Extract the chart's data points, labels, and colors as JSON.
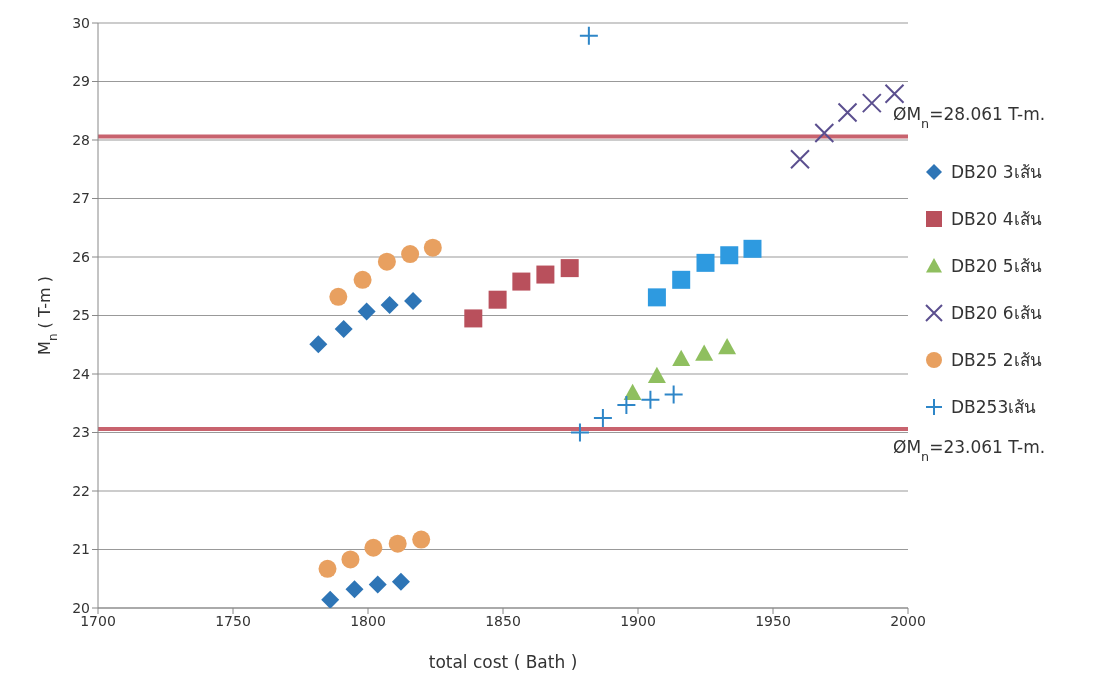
{
  "chart_data": {
    "type": "scatter",
    "xlabel": "total cost ( Bath )",
    "ylabel": "M$_{n}$ ( T-m )",
    "xlim": [
      1700,
      2000
    ],
    "xticks": [
      1700,
      1750,
      1800,
      1850,
      1900,
      1950,
      2000
    ],
    "ylim": [
      20,
      30
    ],
    "yticks": [
      20,
      21,
      22,
      23,
      24,
      25,
      26,
      27,
      28,
      29,
      30
    ],
    "grid": "y",
    "legend": "right",
    "series": [
      {
        "name": "DB20 3เส้น",
        "color": "#2e75b6",
        "marker": "diamond",
        "x": [
          1781.6,
          1791,
          1799.5,
          1808,
          1816.7,
          1786,
          1795,
          1803.6,
          1812.2
        ],
        "values": [
          24.51,
          24.77,
          25.07,
          25.18,
          25.25,
          20.14,
          20.32,
          20.4,
          20.45
        ]
      },
      {
        "name": "DB20 4เส้น",
        "color": "#b9505c",
        "marker": "square",
        "x": [
          1839,
          1848,
          1856.8,
          1865.7,
          1874.7
        ],
        "values": [
          24.95,
          25.27,
          25.58,
          25.7,
          25.81
        ]
      },
      {
        "name": "DB20 5เส้น",
        "color": "#8fbf5f",
        "marker": "triangle",
        "x": [
          1898,
          1907,
          1916,
          1924.5,
          1933
        ],
        "values": [
          23.68,
          23.97,
          24.26,
          24.35,
          24.46
        ]
      },
      {
        "name": "DB20 6เส้น",
        "color": "#5b4f8f",
        "marker": "cross",
        "x": [
          1960,
          1969,
          1977.6,
          1986.6,
          1995
        ],
        "values": [
          27.67,
          28.12,
          28.47,
          28.63,
          28.79
        ]
      },
      {
        "name": "DB25 2เส้น",
        "color": "#e8a060",
        "marker": "circle",
        "x": [
          1789,
          1798,
          1807,
          1815.6,
          1824,
          1785,
          1793.5,
          1802,
          1811,
          1819.7
        ],
        "values": [
          25.32,
          25.61,
          25.92,
          26.05,
          26.16,
          20.67,
          20.83,
          21.03,
          21.1,
          21.17
        ]
      },
      {
        "name": "DB253เส้น",
        "color": "#2e86c8",
        "marker": "plus",
        "x": [
          1878.5,
          1887,
          1895.7,
          1904.6,
          1913.2,
          1881.8
        ],
        "values": [
          23.0,
          23.25,
          23.47,
          23.56,
          23.65,
          29.78
        ]
      },
      {
        "color": "#2e9ae0",
        "marker": "square",
        "x": [
          1907,
          1916,
          1925,
          1933.8,
          1942.4
        ],
        "values": [
          25.31,
          25.61,
          25.9,
          26.03,
          26.14
        ]
      }
    ],
    "ref_lines": [
      {
        "axis": "y",
        "value": 28.061,
        "label": "ØM$_{n}$=28.061 T-m.",
        "color": "#c8636e",
        "line_style": "solid"
      },
      {
        "axis": "y",
        "value": 23.061,
        "label": "ØM$_{n}$=23.061 T-m.",
        "color": "#c8636e",
        "line_style": "solid"
      }
    ]
  }
}
